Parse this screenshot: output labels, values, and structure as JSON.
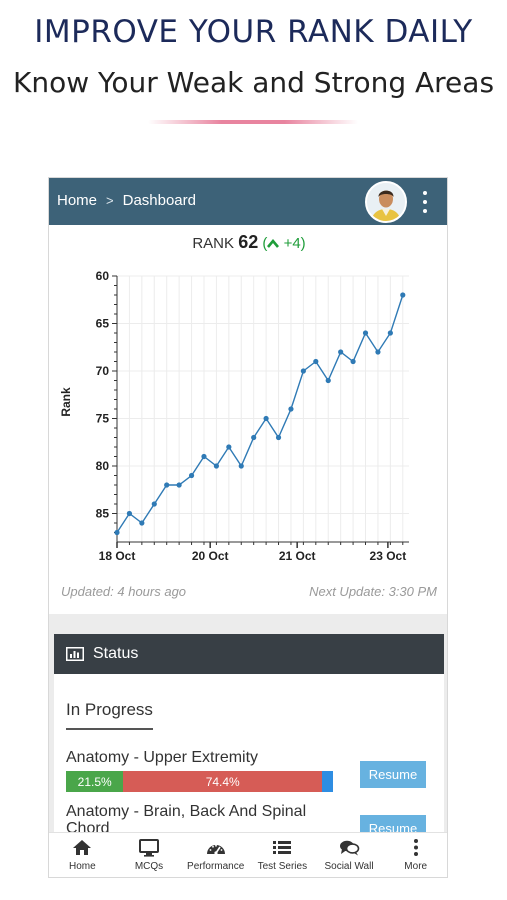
{
  "promo": {
    "title": "IMPROVE YOUR RANK DAILY",
    "subtitle": "Know Your Weak and Strong Areas"
  },
  "appbar": {
    "breadcrumb": [
      "Home",
      "Dashboard"
    ],
    "separator": ">",
    "header_color": "#3d6278"
  },
  "rank": {
    "label": "RANK",
    "value": "62",
    "open_paren": "(",
    "change": "+4",
    "close_paren": ")",
    "change_color": "#1f9d3a"
  },
  "chart_data": {
    "type": "line",
    "ylabel": "Rank",
    "xlabel": "",
    "y_inverted": true,
    "ylim": [
      88,
      60
    ],
    "yticks": [
      60,
      65,
      70,
      75,
      80,
      85
    ],
    "x_tick_labels": [
      "18 Oct",
      "20 Oct",
      "21 Oct",
      "23 Oct"
    ],
    "x_tick_positions": [
      0,
      7.5,
      14.5,
      21.8
    ],
    "xlim": [
      0,
      23.5
    ],
    "grid": true,
    "line_color": "#2f7ab5",
    "series": [
      {
        "x": [
          0,
          1,
          2,
          3,
          4,
          5,
          6,
          7,
          8,
          9,
          10,
          11,
          12,
          13,
          14,
          15,
          16,
          17,
          18,
          19,
          20,
          21,
          22,
          23
        ],
        "values": [
          87,
          85,
          86,
          84,
          82,
          82,
          81,
          79,
          80,
          78,
          80,
          77,
          75,
          77,
          74,
          70,
          69,
          71,
          68,
          69,
          66,
          68,
          66,
          62
        ]
      }
    ]
  },
  "footer_info": {
    "updated": "Updated: 4 hours ago",
    "next_update": "Next Update: 3:30 PM"
  },
  "status": {
    "title": "Status",
    "tab": "In Progress",
    "courses": [
      {
        "name": "Anatomy - Upper Extremity",
        "correct": "21.5%",
        "wrong": "74.4%",
        "correct_fraction": 0.215,
        "wrong_fraction": 0.744,
        "remaining_fraction": 0.041,
        "action": "Resume"
      },
      {
        "name": "Anatomy - Brain, Back And Spinal Chord",
        "action": "Resume"
      }
    ]
  },
  "bottom_nav": [
    {
      "label": "Home",
      "icon": "home-icon"
    },
    {
      "label": "MCQs",
      "icon": "monitor-icon"
    },
    {
      "label": "Performance",
      "icon": "speedometer-icon"
    },
    {
      "label": "Test Series",
      "icon": "list-icon"
    },
    {
      "label": "Social Wall",
      "icon": "chat-icon"
    },
    {
      "label": "More",
      "icon": "more-vertical-icon"
    }
  ]
}
